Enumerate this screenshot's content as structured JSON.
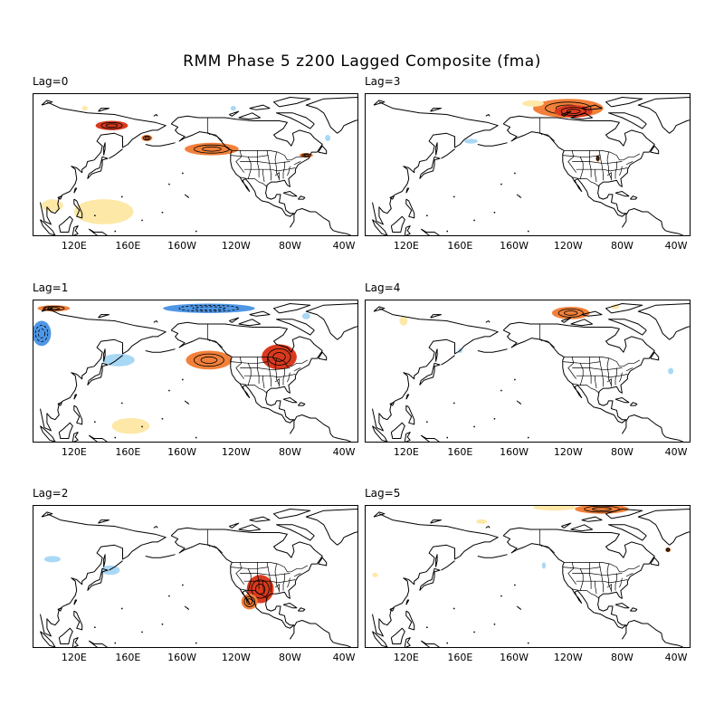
{
  "title": "RMM Phase 5 z200 Lagged Composite (fma)",
  "lon_ticks": [
    "120E",
    "160E",
    "160W",
    "120W",
    "80W",
    "40W"
  ],
  "colors": {
    "warm_light": "#fde8a8",
    "warm_orange": "#f2803a",
    "warm_red": "#d93a1e",
    "cool_light": "#a9d8f5",
    "cool_blue": "#4f97e6",
    "land_line": "#000000"
  },
  "panels": [
    {
      "id": "lag0",
      "label": "Lag=0",
      "anomalies": [
        {
          "sign": "pos",
          "level": 2,
          "lon": -138,
          "lat": 50,
          "rlon": 20,
          "rlat": 4
        },
        {
          "sign": "pos",
          "level": 3,
          "lon": 148,
          "lat": 65,
          "rlon": 12,
          "rlat": 3
        },
        {
          "sign": "pos",
          "level": 2,
          "lon": 174,
          "lat": 57,
          "rlon": 4,
          "rlat": 2
        },
        {
          "sign": "pos",
          "level": 2,
          "lon": -68,
          "lat": 46,
          "rlon": 5,
          "rlat": 1.5
        },
        {
          "sign": "pos",
          "level": 1,
          "lon": 142,
          "lat": 10,
          "rlon": 22,
          "rlat": 8
        },
        {
          "sign": "pos",
          "level": 1,
          "lon": 104,
          "lat": 14,
          "rlon": 8,
          "rlat": 4
        },
        {
          "sign": "pos",
          "level": 1,
          "lon": 128,
          "lat": 76,
          "rlon": 2,
          "rlat": 1.5
        },
        {
          "sign": "neg",
          "level": 1,
          "lon": -52,
          "lat": 57,
          "rlon": 2,
          "rlat": 2
        },
        {
          "sign": "neg",
          "level": 1,
          "lon": -122,
          "lat": 76,
          "rlon": 2,
          "rlat": 1.5
        }
      ]
    },
    {
      "id": "lag3",
      "label": "Lag=3",
      "anomalies": [
        {
          "sign": "pos",
          "level": 2,
          "lon": -120,
          "lat": 76,
          "rlon": 26,
          "rlat": 6
        },
        {
          "sign": "pos",
          "level": 3,
          "lon": -116,
          "lat": 74,
          "rlon": 14,
          "rlat": 4
        },
        {
          "sign": "pos",
          "level": 1,
          "lon": -146,
          "lat": 79,
          "rlon": 8,
          "rlat": 2
        },
        {
          "sign": "neg",
          "level": 1,
          "lon": 168,
          "lat": 55,
          "rlon": 5,
          "rlat": 1.5
        },
        {
          "sign": "pos",
          "level": 2,
          "lon": -98,
          "lat": 44,
          "rlon": 1.5,
          "rlat": 2
        }
      ]
    },
    {
      "id": "lag1",
      "label": "Lag=1",
      "anomalies": [
        {
          "sign": "pos",
          "level": 3,
          "lon": -88,
          "lat": 49,
          "rlon": 13,
          "rlat": 8
        },
        {
          "sign": "pos",
          "level": 2,
          "lon": -140,
          "lat": 47,
          "rlon": 17,
          "rlat": 6
        },
        {
          "sign": "neg",
          "level": 2,
          "lon": -140,
          "lat": 80,
          "rlon": 34,
          "rlat": 3
        },
        {
          "sign": "neg",
          "level": 2,
          "lon": 96,
          "lat": 64,
          "rlon": 7,
          "rlat": 8
        },
        {
          "sign": "neg",
          "level": 1,
          "lon": 153,
          "lat": 47,
          "rlon": 12,
          "rlat": 4
        },
        {
          "sign": "pos",
          "level": 2,
          "lon": 105,
          "lat": 80,
          "rlon": 12,
          "rlat": 2
        },
        {
          "sign": "pos",
          "level": 1,
          "lon": 162,
          "lat": 5,
          "rlon": 14,
          "rlat": 5
        },
        {
          "sign": "neg",
          "level": 1,
          "lon": -68,
          "lat": 75,
          "rlon": 3,
          "rlat": 2
        }
      ]
    },
    {
      "id": "lag4",
      "label": "Lag=4",
      "anomalies": [
        {
          "sign": "pos",
          "level": 2,
          "lon": -118,
          "lat": 77,
          "rlon": 14,
          "rlat": 4
        },
        {
          "sign": "pos",
          "level": 1,
          "lon": 118,
          "lat": 72,
          "rlon": 3,
          "rlat": 3
        },
        {
          "sign": "neg",
          "level": 1,
          "lon": -44,
          "lat": 40,
          "rlon": 2,
          "rlat": 2
        },
        {
          "sign": "neg",
          "level": 1,
          "lon": 160,
          "lat": 53,
          "rlon": 1.5,
          "rlat": 1.5
        },
        {
          "sign": "pos",
          "level": 1,
          "lon": -85,
          "lat": 81,
          "rlon": 3,
          "rlat": 1.5
        }
      ]
    },
    {
      "id": "lag2",
      "label": "Lag=2",
      "anomalies": [
        {
          "sign": "pos",
          "level": 3,
          "lon": -102,
          "lat": 32,
          "rlon": 10,
          "rlat": 9
        },
        {
          "sign": "pos",
          "level": 2,
          "lon": -110,
          "lat": 24,
          "rlon": 6,
          "rlat": 5
        },
        {
          "sign": "neg",
          "level": 1,
          "lon": 104,
          "lat": 51,
          "rlon": 6,
          "rlat": 2
        },
        {
          "sign": "neg",
          "level": 1,
          "lon": 147,
          "lat": 44,
          "rlon": 7,
          "rlat": 3
        }
      ]
    },
    {
      "id": "lag5",
      "label": "Lag=5",
      "anomalies": [
        {
          "sign": "pos",
          "level": 2,
          "lon": -95,
          "lat": 83,
          "rlon": 20,
          "rlat": 3
        },
        {
          "sign": "pos",
          "level": 1,
          "lon": -130,
          "lat": 84,
          "rlon": 16,
          "rlat": 2
        },
        {
          "sign": "pos",
          "level": 1,
          "lon": 176,
          "lat": 75,
          "rlon": 4,
          "rlat": 1.5
        },
        {
          "sign": "pos",
          "level": 2,
          "lon": -46,
          "lat": 57,
          "rlon": 2,
          "rlat": 1.5
        },
        {
          "sign": "pos",
          "level": 1,
          "lon": 97,
          "lat": 41,
          "rlon": 2,
          "rlat": 1.5
        },
        {
          "sign": "neg",
          "level": 1,
          "lon": -138,
          "lat": 47,
          "rlon": 1.5,
          "rlat": 2
        }
      ]
    }
  ]
}
